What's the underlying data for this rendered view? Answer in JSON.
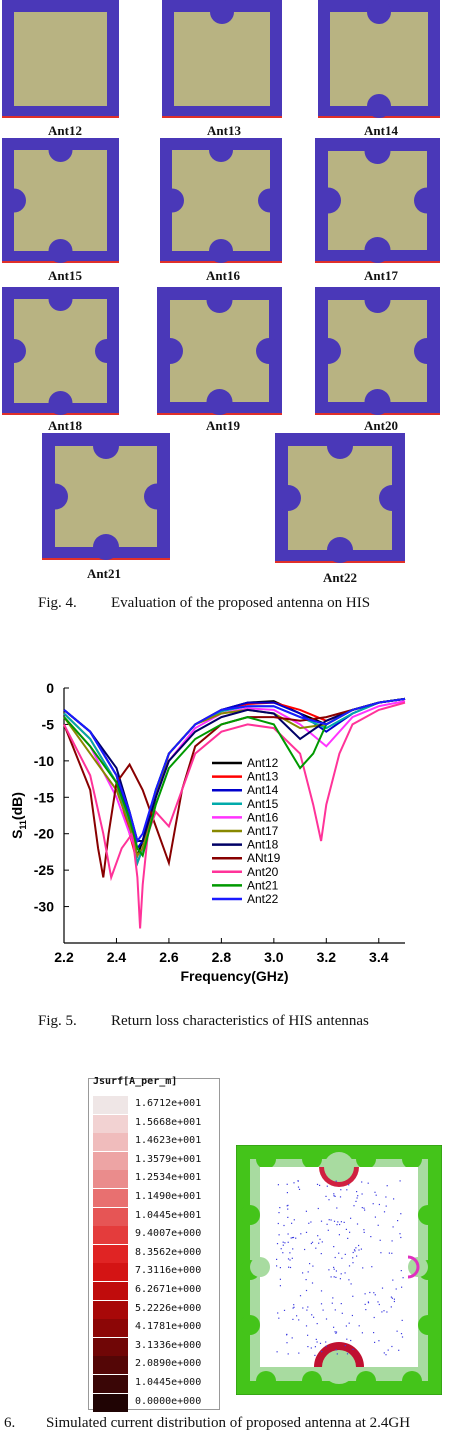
{
  "antennas": [
    {
      "label": "Ant12",
      "notches": []
    },
    {
      "label": "Ant13",
      "notches": [
        "t"
      ]
    },
    {
      "label": "Ant14",
      "notches": [
        "t",
        "b"
      ]
    },
    {
      "label": "Ant15",
      "notches": [
        "t",
        "b",
        "l"
      ]
    },
    {
      "label": "Ant16",
      "notches": [
        "t",
        "b",
        "l",
        "r"
      ]
    },
    {
      "label": "Ant17",
      "notches": [
        "t",
        "b",
        "l",
        "r"
      ]
    },
    {
      "label": "Ant18",
      "notches": [
        "t",
        "b",
        "l",
        "r"
      ]
    },
    {
      "label": "Ant19",
      "notches": [
        "t",
        "b",
        "l",
        "r"
      ]
    },
    {
      "label": "Ant20",
      "notches": [
        "t",
        "b",
        "l",
        "r"
      ]
    },
    {
      "label": "Ant21",
      "notches": [
        "t",
        "b",
        "l",
        "r"
      ]
    },
    {
      "label": "Ant22",
      "notches": [
        "t",
        "b",
        "l",
        "r"
      ]
    }
  ],
  "colors": {
    "substrate": "#4a38b8",
    "patch": "#b8b382",
    "edge": "#e0302a"
  },
  "fig4_caption": {
    "num": "Fig. 4.",
    "text": "Evaluation of the proposed antenna on HIS"
  },
  "fig5_caption": {
    "num": "Fig. 5.",
    "text": "Return loss characteristics of HIS antennas"
  },
  "fig6_caption": {
    "num": "6.",
    "text": "Simulated current distribution of proposed antenna at 2.4GH"
  },
  "chart_data": {
    "type": "line",
    "xlabel": "Frequency(GHz)",
    "ylabel": "S11(dB)",
    "xlim": [
      2.2,
      3.5
    ],
    "ylim": [
      -35,
      0
    ],
    "xticks": [
      "2.2",
      "2.4",
      "2.6",
      "2.8",
      "3.0",
      "3.2",
      "3.4"
    ],
    "yticks": [
      "0",
      "-5",
      "-10",
      "-15",
      "-20",
      "-25",
      "-30"
    ],
    "legend": "right",
    "series": [
      {
        "name": "Ant12",
        "color": "#000000",
        "x": [
          2.2,
          2.3,
          2.4,
          2.45,
          2.48,
          2.5,
          2.55,
          2.6,
          2.7,
          2.8,
          2.9,
          3.0,
          3.1,
          3.2,
          3.3,
          3.4,
          3.5
        ],
        "y": [
          -3,
          -6,
          -12,
          -19,
          -23,
          -21,
          -14,
          -9,
          -5,
          -3,
          -2,
          -1.8,
          -3.5,
          -5,
          -3,
          -2,
          -1.5
        ]
      },
      {
        "name": "Ant13",
        "color": "#ff0000",
        "x": [
          2.2,
          2.3,
          2.4,
          2.45,
          2.48,
          2.5,
          2.55,
          2.6,
          2.7,
          2.8,
          2.9,
          3.0,
          3.1,
          3.2,
          3.3,
          3.4,
          3.5
        ],
        "y": [
          -3.5,
          -7,
          -13,
          -20,
          -24,
          -22,
          -15,
          -9,
          -5,
          -3,
          -2.2,
          -2,
          -3,
          -4.5,
          -3,
          -2,
          -1.5
        ]
      },
      {
        "name": "Ant14",
        "color": "#0000cc",
        "x": [
          2.2,
          2.3,
          2.4,
          2.45,
          2.48,
          2.5,
          2.55,
          2.6,
          2.7,
          2.8,
          2.9,
          3.0,
          3.1,
          3.2,
          3.3,
          3.4,
          3.5
        ],
        "y": [
          -3,
          -6,
          -12,
          -18,
          -22,
          -21,
          -14,
          -9,
          -5,
          -3,
          -2,
          -2,
          -3.5,
          -6,
          -3.5,
          -2,
          -1.5
        ]
      },
      {
        "name": "Ant15",
        "color": "#00aaaa",
        "x": [
          2.2,
          2.3,
          2.4,
          2.45,
          2.48,
          2.5,
          2.55,
          2.6,
          2.7,
          2.8,
          2.9,
          3.0,
          3.1,
          3.2,
          3.3,
          3.4,
          3.5
        ],
        "y": [
          -3.5,
          -7,
          -13,
          -19,
          -24,
          -22,
          -14,
          -9,
          -5,
          -3.2,
          -2.5,
          -2.5,
          -4,
          -5.5,
          -3.5,
          -2,
          -1.5
        ]
      },
      {
        "name": "Ant16",
        "color": "#ff33ff",
        "x": [
          2.2,
          2.3,
          2.4,
          2.45,
          2.48,
          2.5,
          2.55,
          2.6,
          2.7,
          2.8,
          2.9,
          3.0,
          3.1,
          3.2,
          3.3,
          3.4,
          3.5
        ],
        "y": [
          -4,
          -8,
          -15,
          -20,
          -23,
          -22,
          -15,
          -10,
          -5.5,
          -3.5,
          -2.8,
          -3,
          -5,
          -8,
          -4,
          -2.5,
          -1.8
        ]
      },
      {
        "name": "Ant17",
        "color": "#888800",
        "x": [
          2.2,
          2.3,
          2.4,
          2.45,
          2.48,
          2.5,
          2.55,
          2.6,
          2.7,
          2.8,
          2.9,
          3.0,
          3.1,
          3.2,
          3.3,
          3.4,
          3.5
        ],
        "y": [
          -4,
          -9,
          -14,
          -19,
          -23,
          -22,
          -15,
          -9,
          -5,
          -3.5,
          -3,
          -3.5,
          -5.5,
          -5,
          -3,
          -2,
          -1.5
        ]
      },
      {
        "name": "Ant18",
        "color": "#000066",
        "x": [
          2.2,
          2.3,
          2.4,
          2.45,
          2.48,
          2.5,
          2.55,
          2.6,
          2.7,
          2.8,
          2.9,
          3.0,
          3.1,
          3.2,
          3.3,
          3.4,
          3.5
        ],
        "y": [
          -3,
          -6,
          -11,
          -17,
          -21,
          -21,
          -15,
          -10,
          -6,
          -4,
          -3,
          -3.5,
          -7,
          -4.5,
          -3,
          -2,
          -1.5
        ]
      },
      {
        "name": "ANt19",
        "color": "#880000",
        "x": [
          2.2,
          2.3,
          2.33,
          2.35,
          2.37,
          2.4,
          2.45,
          2.5,
          2.55,
          2.58,
          2.6,
          2.65,
          2.7,
          2.8,
          2.9,
          3.0,
          3.1,
          3.2,
          3.3,
          3.4,
          3.5
        ],
        "y": [
          -5,
          -14,
          -22,
          -26,
          -20,
          -13,
          -10.5,
          -14,
          -19,
          -22,
          -24,
          -14,
          -8,
          -5,
          -4,
          -4,
          -4.5,
          -4,
          -3,
          -2,
          -1.5
        ]
      },
      {
        "name": "Ant20",
        "color": "#ff3399",
        "x": [
          2.2,
          2.3,
          2.35,
          2.38,
          2.42,
          2.46,
          2.48,
          2.49,
          2.5,
          2.52,
          2.55,
          2.6,
          2.65,
          2.7,
          2.8,
          2.9,
          3.0,
          3.1,
          3.15,
          3.18,
          3.2,
          3.25,
          3.3,
          3.4,
          3.5
        ],
        "y": [
          -5,
          -12,
          -20,
          -26,
          -22,
          -20,
          -26,
          -33,
          -27,
          -20,
          -17,
          -19,
          -14,
          -9,
          -6,
          -5,
          -5.5,
          -9,
          -16,
          -21,
          -16,
          -9,
          -5,
          -3,
          -2
        ]
      },
      {
        "name": "Ant21",
        "color": "#009900",
        "x": [
          2.2,
          2.3,
          2.4,
          2.45,
          2.48,
          2.5,
          2.55,
          2.6,
          2.7,
          2.8,
          2.9,
          3.0,
          3.05,
          3.1,
          3.15,
          3.2,
          3.3,
          3.4,
          3.5
        ],
        "y": [
          -4,
          -8,
          -13,
          -18,
          -22,
          -23,
          -16,
          -11,
          -7,
          -5,
          -4,
          -5,
          -8,
          -11,
          -9,
          -5,
          -3,
          -2,
          -1.5
        ]
      },
      {
        "name": "Ant22",
        "color": "#1a1aff",
        "x": [
          2.2,
          2.3,
          2.4,
          2.45,
          2.48,
          2.5,
          2.55,
          2.6,
          2.7,
          2.8,
          2.9,
          3.0,
          3.1,
          3.2,
          3.3,
          3.4,
          3.5
        ],
        "y": [
          -3,
          -6,
          -12,
          -17,
          -21,
          -20,
          -14,
          -9,
          -5,
          -3,
          -2.5,
          -2.5,
          -4,
          -5,
          -3,
          -2,
          -1.5
        ]
      }
    ]
  },
  "colorbar": {
    "title": "Jsurf[A_per_m]",
    "levels": [
      {
        "value": "1.6712e+001",
        "color": "#efe6e6"
      },
      {
        "value": "1.5668e+001",
        "color": "#f2d2d2"
      },
      {
        "value": "1.4623e+001",
        "color": "#f0bcbc"
      },
      {
        "value": "1.3579e+001",
        "color": "#eda4a4"
      },
      {
        "value": "1.2534e+001",
        "color": "#ea8c8c"
      },
      {
        "value": "1.1490e+001",
        "color": "#e87070"
      },
      {
        "value": "1.0445e+001",
        "color": "#e65555"
      },
      {
        "value": "9.4007e+000",
        "color": "#e43c3c"
      },
      {
        "value": "8.3562e+000",
        "color": "#e02424"
      },
      {
        "value": "7.3116e+000",
        "color": "#d41414"
      },
      {
        "value": "6.2671e+000",
        "color": "#c00c0c"
      },
      {
        "value": "5.2226e+000",
        "color": "#a80808"
      },
      {
        "value": "4.1781e+000",
        "color": "#8c0606"
      },
      {
        "value": "3.1336e+000",
        "color": "#700606"
      },
      {
        "value": "2.0890e+000",
        "color": "#540606"
      },
      {
        "value": "1.0445e+000",
        "color": "#3a0606"
      },
      {
        "value": "0.0000e+000",
        "color": "#200404"
      }
    ]
  }
}
